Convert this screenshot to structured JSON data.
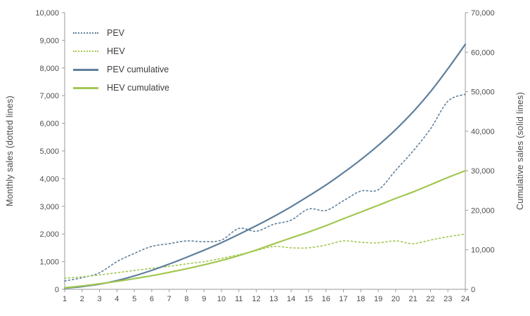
{
  "chart_data": {
    "type": "line",
    "x": [
      1,
      2,
      3,
      4,
      5,
      6,
      7,
      8,
      9,
      10,
      11,
      12,
      13,
      14,
      15,
      16,
      17,
      18,
      19,
      20,
      21,
      22,
      23,
      24
    ],
    "series": [
      {
        "name": "PEV",
        "axis": "left",
        "style": "dotted",
        "color": "#5f7f9b",
        "values": [
          300,
          420,
          600,
          1000,
          1300,
          1550,
          1650,
          1750,
          1720,
          1780,
          2200,
          2100,
          2350,
          2500,
          2900,
          2850,
          3200,
          3550,
          3600,
          4300,
          5000,
          5800,
          6800,
          7050
        ]
      },
      {
        "name": "HEV",
        "axis": "left",
        "style": "dotted",
        "color": "#a2c750",
        "values": [
          400,
          450,
          520,
          600,
          680,
          760,
          830,
          920,
          1000,
          1120,
          1250,
          1400,
          1550,
          1500,
          1500,
          1600,
          1750,
          1700,
          1680,
          1750,
          1650,
          1780,
          1900,
          2000
        ]
      },
      {
        "name": "PEV cumulative",
        "axis": "right",
        "style": "solid",
        "color": "#5f7f9b",
        "values": [
          300,
          700,
          1300,
          2200,
          3400,
          4800,
          6400,
          8100,
          9900,
          11800,
          13900,
          16100,
          18400,
          20900,
          23600,
          26400,
          29500,
          32800,
          36400,
          40400,
          44900,
          50000,
          55800,
          62000
        ]
      },
      {
        "name": "HEV cumulative",
        "axis": "right",
        "style": "solid",
        "color": "#a2c750",
        "values": [
          400,
          850,
          1400,
          2000,
          2700,
          3450,
          4300,
          5200,
          6200,
          7300,
          8550,
          9950,
          11500,
          13000,
          14500,
          16100,
          17850,
          19550,
          21250,
          23000,
          24650,
          26450,
          28300,
          30000
        ]
      }
    ],
    "left_axis": {
      "label": "Monthly sales (dotted lines)",
      "min": 0,
      "max": 10000,
      "step": 1000
    },
    "right_axis": {
      "label": "Cumulative sales (solid lines)",
      "min": 0,
      "max": 70000,
      "step": 10000
    },
    "grid": false,
    "legend_position": "top-left",
    "axis_color": "#9a9a9a",
    "tick_text_color": "#4d4d4d"
  }
}
